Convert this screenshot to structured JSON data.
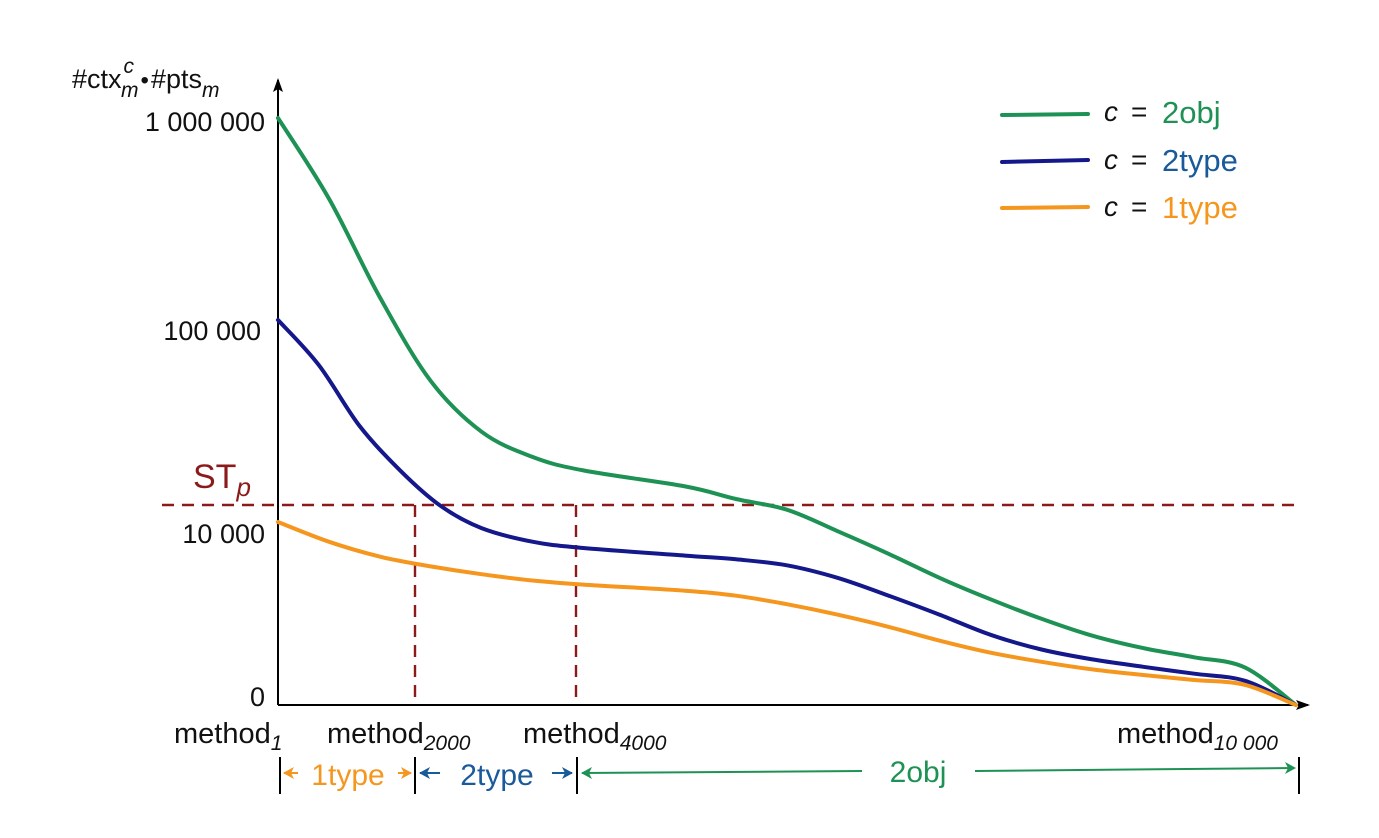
{
  "chart_data": {
    "type": "line",
    "y_axis_label": {
      "base": "#ctx",
      "sup": "c",
      "sub": "m",
      "dot": "•",
      "base2": "#pts",
      "sub2": "m"
    },
    "y_ticks": [
      "1 000 000",
      "100 000",
      "10 000",
      "0"
    ],
    "x_ticks": [
      {
        "base": "method",
        "sub": "1"
      },
      {
        "base": "method",
        "sub": "2000"
      },
      {
        "base": "method",
        "sub": "4000"
      },
      {
        "base": "method",
        "sub": "10 000"
      }
    ],
    "x_range": [
      1,
      10000
    ],
    "y_scale": "log",
    "threshold": {
      "label_base": "ST",
      "label_sub": "p",
      "value": 15000,
      "color": "#8B1A1A"
    },
    "legend": {
      "position": "top-right",
      "var": "c",
      "eq": "="
    },
    "series": [
      {
        "name": "2obj",
        "color": "#1E9255",
        "points": [
          [
            1,
            1000000
          ],
          [
            500,
            400000
          ],
          [
            1000,
            130000
          ],
          [
            1500,
            50000
          ],
          [
            2000,
            28000
          ],
          [
            2500,
            21000
          ],
          [
            3000,
            18000
          ],
          [
            4000,
            15000
          ],
          [
            4500,
            13000
          ],
          [
            5000,
            11500
          ],
          [
            5500,
            8500
          ],
          [
            6000,
            5500
          ],
          [
            6500,
            3200
          ],
          [
            7000,
            1800
          ],
          [
            7500,
            950
          ],
          [
            8000,
            480
          ],
          [
            8500,
            260
          ],
          [
            9000,
            150
          ],
          [
            9500,
            70
          ],
          [
            10000,
            0
          ]
        ]
      },
      {
        "name": "2type",
        "color": "#14188A",
        "points": [
          [
            1,
            100000
          ],
          [
            400,
            60000
          ],
          [
            800,
            30000
          ],
          [
            1200,
            18000
          ],
          [
            1600,
            12000
          ],
          [
            2000,
            9000
          ],
          [
            2500,
            7000
          ],
          [
            3000,
            6200
          ],
          [
            4000,
            5300
          ],
          [
            4500,
            4900
          ],
          [
            5000,
            4300
          ],
          [
            5500,
            3200
          ],
          [
            6000,
            2000
          ],
          [
            6500,
            1100
          ],
          [
            7000,
            500
          ],
          [
            7500,
            240
          ],
          [
            8000,
            130
          ],
          [
            8500,
            75
          ],
          [
            9000,
            40
          ],
          [
            9500,
            18
          ],
          [
            10000,
            0
          ]
        ]
      },
      {
        "name": "1type",
        "color": "#F5961E",
        "points": [
          [
            1,
            10000
          ],
          [
            500,
            7000
          ],
          [
            1000,
            5200
          ],
          [
            1500,
            4200
          ],
          [
            2000,
            3500
          ],
          [
            2500,
            3000
          ],
          [
            3000,
            2700
          ],
          [
            4000,
            2300
          ],
          [
            4500,
            2000
          ],
          [
            5000,
            1550
          ],
          [
            5500,
            1100
          ],
          [
            6000,
            700
          ],
          [
            6500,
            380
          ],
          [
            7000,
            200
          ],
          [
            7500,
            110
          ],
          [
            8000,
            60
          ],
          [
            8500,
            35
          ],
          [
            9000,
            20
          ],
          [
            9500,
            10
          ],
          [
            10000,
            0
          ]
        ]
      }
    ],
    "ranges": [
      {
        "label": "1type",
        "from": 1,
        "to": 2000,
        "color": "#F5961E"
      },
      {
        "label": "2type",
        "from": 2000,
        "to": 4000,
        "color": "#1A5A9A"
      },
      {
        "label": "2obj",
        "from": 4000,
        "to": 10000,
        "color": "#1E9255"
      }
    ],
    "axis_color": "#000000",
    "text_color": "#111111"
  }
}
